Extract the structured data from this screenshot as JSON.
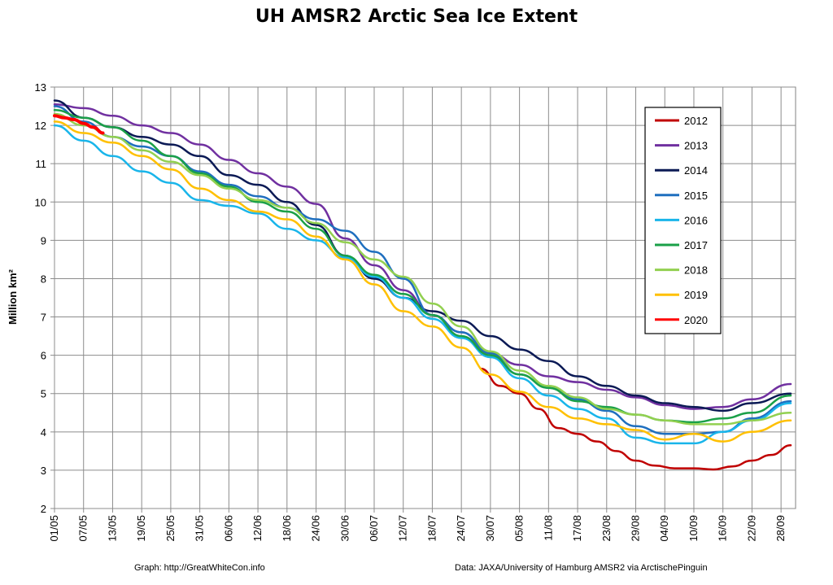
{
  "title": "UH AMSR2 Arctic Sea Ice Extent",
  "credits": {
    "left": "Graph: http://GreatWhiteCon.info",
    "right": "Data: JAXA/University of Hamburg AMSR2 via ArctischePinguin"
  },
  "chart_data": {
    "type": "line",
    "ylabel": "Million km²",
    "xlabel": "",
    "ylim": [
      2,
      13
    ],
    "yticks": [
      2,
      3,
      4,
      5,
      6,
      7,
      8,
      9,
      10,
      11,
      12,
      13
    ],
    "xlim": [
      "01/05",
      "01/10"
    ],
    "xticks": [
      "01/05",
      "07/05",
      "13/05",
      "19/05",
      "25/05",
      "31/05",
      "06/06",
      "12/06",
      "18/06",
      "24/06",
      "30/06",
      "06/07",
      "12/07",
      "18/07",
      "24/07",
      "30/07",
      "05/08",
      "11/08",
      "17/08",
      "23/08",
      "29/08",
      "04/09",
      "10/09",
      "16/09",
      "22/09",
      "28/09"
    ],
    "grid": true,
    "legend_position": "right",
    "series": [
      {
        "name": "2012",
        "color": "#c00000",
        "x": [
          "28/07",
          "01/08",
          "05/08",
          "09/08",
          "13/08",
          "17/08",
          "21/08",
          "25/08",
          "29/08",
          "02/09",
          "06/09",
          "10/09",
          "14/09",
          "18/09",
          "22/09",
          "26/09",
          "30/09"
        ],
        "values": [
          5.65,
          5.2,
          5.0,
          4.6,
          4.1,
          3.95,
          3.75,
          3.5,
          3.25,
          3.12,
          3.05,
          3.05,
          3.02,
          3.1,
          3.25,
          3.4,
          3.65
        ]
      },
      {
        "name": "2013",
        "color": "#7030a0",
        "x": [
          "01/05",
          "07/05",
          "13/05",
          "19/05",
          "25/05",
          "31/05",
          "06/06",
          "12/06",
          "18/06",
          "24/06",
          "30/06",
          "06/07",
          "12/07",
          "18/07",
          "24/07",
          "30/07",
          "05/08",
          "11/08",
          "17/08",
          "23/08",
          "29/08",
          "04/09",
          "10/09",
          "16/09",
          "22/09",
          "30/09"
        ],
        "values": [
          12.55,
          12.45,
          12.25,
          12.0,
          11.8,
          11.5,
          11.1,
          10.75,
          10.4,
          9.95,
          9.05,
          8.35,
          7.7,
          7.05,
          6.6,
          6.05,
          5.75,
          5.45,
          5.3,
          5.1,
          4.9,
          4.7,
          4.6,
          4.65,
          4.85,
          5.25
        ]
      },
      {
        "name": "2014",
        "color": "#0b1a55",
        "x": [
          "01/05",
          "07/05",
          "13/05",
          "19/05",
          "25/05",
          "31/05",
          "06/06",
          "12/06",
          "18/06",
          "24/06",
          "30/06",
          "06/07",
          "12/07",
          "18/07",
          "24/07",
          "30/07",
          "05/08",
          "11/08",
          "17/08",
          "23/08",
          "29/08",
          "04/09",
          "10/09",
          "16/09",
          "22/09",
          "30/09"
        ],
        "values": [
          12.65,
          12.2,
          11.95,
          11.7,
          11.5,
          11.2,
          10.7,
          10.45,
          10.0,
          9.4,
          8.6,
          8.0,
          7.5,
          7.15,
          6.9,
          6.5,
          6.15,
          5.85,
          5.45,
          5.2,
          4.95,
          4.75,
          4.65,
          4.55,
          4.75,
          5.0
        ]
      },
      {
        "name": "2015",
        "color": "#1f6fbf",
        "x": [
          "01/05",
          "07/05",
          "13/05",
          "19/05",
          "25/05",
          "31/05",
          "06/06",
          "12/06",
          "18/06",
          "24/06",
          "30/06",
          "06/07",
          "12/07",
          "18/07",
          "24/07",
          "30/07",
          "05/08",
          "11/08",
          "17/08",
          "23/08",
          "29/08",
          "04/09",
          "10/09",
          "16/09",
          "22/09",
          "30/09"
        ],
        "values": [
          12.5,
          12.1,
          11.7,
          11.45,
          11.2,
          10.8,
          10.45,
          10.15,
          9.85,
          9.55,
          9.25,
          8.7,
          8.0,
          7.05,
          6.6,
          6.05,
          5.5,
          5.15,
          4.85,
          4.55,
          4.15,
          3.95,
          3.95,
          4.0,
          4.35,
          4.8
        ]
      },
      {
        "name": "2016",
        "color": "#19b5ea",
        "x": [
          "01/05",
          "07/05",
          "13/05",
          "19/05",
          "25/05",
          "31/05",
          "06/06",
          "12/06",
          "18/06",
          "24/06",
          "30/06",
          "06/07",
          "12/07",
          "18/07",
          "24/07",
          "30/07",
          "05/08",
          "11/08",
          "17/08",
          "23/08",
          "29/08",
          "04/09",
          "10/09",
          "16/09",
          "22/09",
          "30/09"
        ],
        "values": [
          12.0,
          11.6,
          11.2,
          10.8,
          10.5,
          10.05,
          9.9,
          9.7,
          9.3,
          9.0,
          8.55,
          8.05,
          7.5,
          6.95,
          6.45,
          5.95,
          5.4,
          4.95,
          4.6,
          4.35,
          3.85,
          3.7,
          3.7,
          4.0,
          4.3,
          4.75
        ]
      },
      {
        "name": "2017",
        "color": "#1aa048",
        "x": [
          "01/05",
          "07/05",
          "13/05",
          "19/05",
          "25/05",
          "31/05",
          "06/06",
          "12/06",
          "18/06",
          "24/06",
          "30/06",
          "06/07",
          "12/07",
          "18/07",
          "24/07",
          "30/07",
          "05/08",
          "11/08",
          "17/08",
          "23/08",
          "29/08",
          "04/09",
          "10/09",
          "16/09",
          "22/09",
          "30/09"
        ],
        "values": [
          12.4,
          12.2,
          11.95,
          11.6,
          11.2,
          10.75,
          10.4,
          10.0,
          9.75,
          9.3,
          8.6,
          8.1,
          7.6,
          7.05,
          6.5,
          6.0,
          5.5,
          5.15,
          4.8,
          4.65,
          4.45,
          4.3,
          4.25,
          4.35,
          4.5,
          4.95
        ]
      },
      {
        "name": "2018",
        "color": "#92d050",
        "x": [
          "01/05",
          "07/05",
          "13/05",
          "19/05",
          "25/05",
          "31/05",
          "06/06",
          "12/06",
          "18/06",
          "24/06",
          "30/06",
          "06/07",
          "12/07",
          "18/07",
          "24/07",
          "30/07",
          "05/08",
          "11/08",
          "17/08",
          "23/08",
          "29/08",
          "04/09",
          "10/09",
          "16/09",
          "22/09",
          "30/09"
        ],
        "values": [
          12.3,
          12.0,
          11.7,
          11.35,
          11.05,
          10.7,
          10.35,
          10.05,
          9.85,
          9.45,
          8.95,
          8.5,
          8.05,
          7.35,
          6.75,
          6.1,
          5.6,
          5.2,
          4.9,
          4.6,
          4.45,
          4.3,
          4.2,
          4.2,
          4.3,
          4.5
        ]
      },
      {
        "name": "2019",
        "color": "#ffc000",
        "x": [
          "01/05",
          "07/05",
          "13/05",
          "19/05",
          "25/05",
          "31/05",
          "06/06",
          "12/06",
          "18/06",
          "24/06",
          "30/06",
          "06/07",
          "12/07",
          "18/07",
          "24/07",
          "30/07",
          "05/08",
          "11/08",
          "17/08",
          "23/08",
          "29/08",
          "04/09",
          "10/09",
          "16/09",
          "22/09",
          "30/09"
        ],
        "values": [
          12.1,
          11.8,
          11.55,
          11.2,
          10.85,
          10.35,
          10.05,
          9.75,
          9.55,
          9.1,
          8.5,
          7.85,
          7.15,
          6.75,
          6.2,
          5.5,
          5.05,
          4.65,
          4.35,
          4.2,
          4.05,
          3.8,
          3.95,
          3.75,
          4.0,
          4.3
        ]
      },
      {
        "name": "2020",
        "color": "#ff0000",
        "x": [
          "01/05",
          "03/05",
          "05/05",
          "07/05",
          "09/05",
          "11/05"
        ],
        "values": [
          12.25,
          12.2,
          12.15,
          12.05,
          11.95,
          11.8
        ]
      }
    ]
  }
}
